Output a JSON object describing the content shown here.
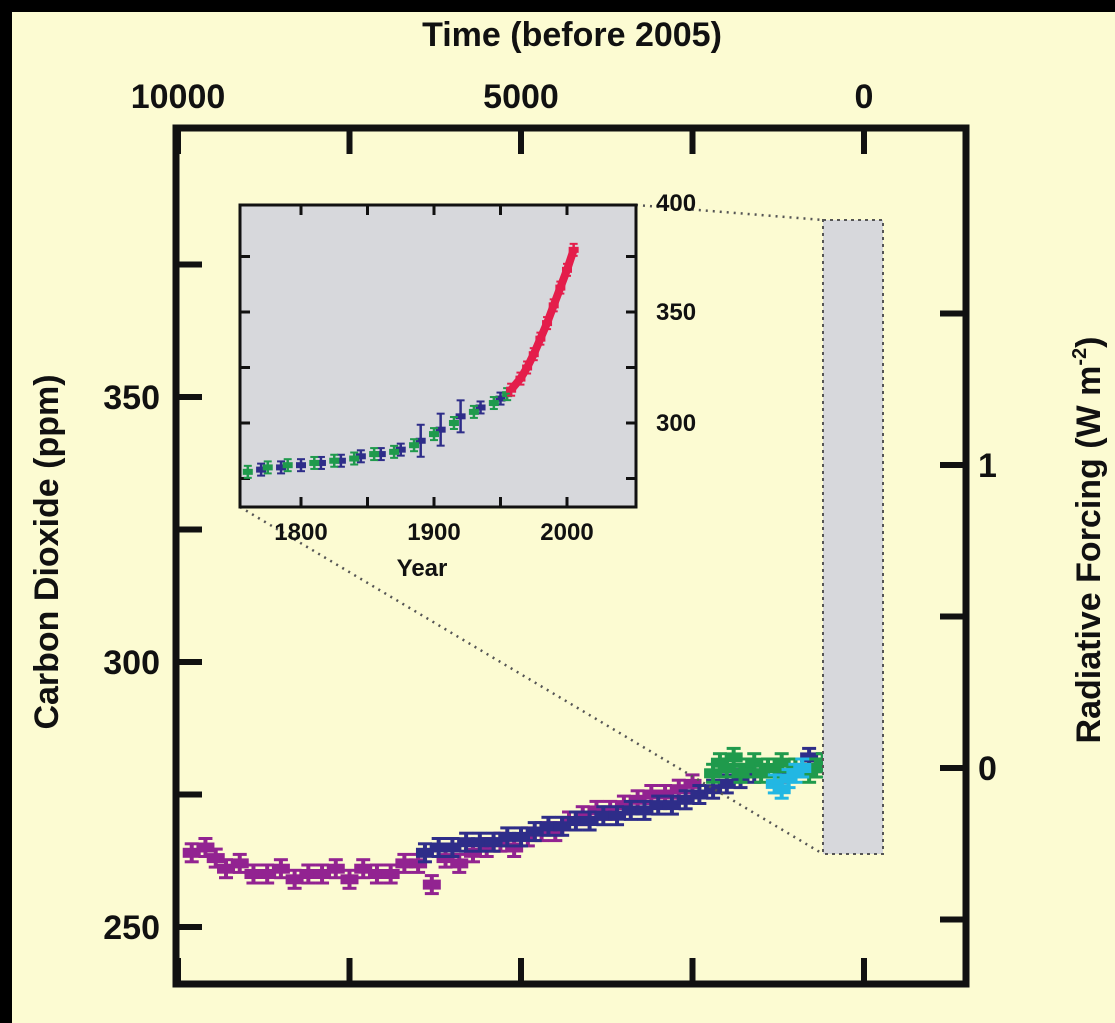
{
  "chart_data": [
    {
      "type": "scatter",
      "title": "",
      "x_top_label": "Time (before 2005)",
      "y_left_label": "Carbon Dioxide (ppm)",
      "y_right_label": "Radiative Forcing (W m",
      "y_right_label_sup": "-2",
      "y_right_label_close": ")",
      "x_ticks": [
        10000,
        5000,
        0
      ],
      "x_tick_labels": [
        "10000",
        "5000",
        "0"
      ],
      "x_range": [
        10000,
        -300
      ],
      "y_range": [
        245,
        397
      ],
      "y_ticks": [
        250,
        300,
        350
      ],
      "y_tick_labels": [
        "250",
        "300",
        "350"
      ],
      "y_right_ticks": [
        0,
        1
      ],
      "y_right_tick_labels": [
        "0",
        "1"
      ],
      "y_right_range": [
        -0.5,
        3.0
      ],
      "y_right_tick_ppm": [
        278.5,
        332.5
      ],
      "series": [
        {
          "name": "",
          "color": "#922391",
          "x": [
            10000,
            9800,
            9600,
            9450,
            9300,
            9100,
            8900,
            8700,
            8500,
            8300,
            8100,
            7900,
            7700,
            7500,
            7300,
            7100,
            6900,
            6700,
            6500,
            6300,
            6100,
            5900,
            5700,
            5500,
            5300,
            5100,
            4900,
            4700,
            4500,
            4300,
            4100,
            3900,
            3700,
            3500,
            3300,
            3100,
            2900,
            2700,
            2500
          ],
          "y": [
            265,
            264,
            265,
            263,
            261,
            262,
            260,
            260,
            261,
            259,
            260,
            260,
            261,
            259,
            261,
            260,
            260,
            262,
            262,
            258,
            263,
            262,
            264,
            265,
            266,
            265,
            267,
            268,
            268,
            270,
            271,
            272,
            272,
            273,
            274,
            275,
            275,
            276,
            277
          ]
        },
        {
          "name": "",
          "color": "#2e2d89",
          "x": [
            6400,
            6200,
            6000,
            5800,
            5600,
            5400,
            5200,
            5000,
            4800,
            4600,
            4400,
            4200,
            4000,
            3800,
            3600,
            3400,
            3200,
            3000,
            2800,
            2600,
            2400,
            2200,
            2000,
            1800,
            1600,
            1400,
            1200,
            1000,
            800,
            600,
            400,
            300,
            200,
            150,
            100,
            50,
            0
          ],
          "y": [
            264,
            265,
            265,
            266,
            266,
            266,
            267,
            267,
            268,
            269,
            269,
            270,
            270,
            271,
            271,
            272,
            272,
            273,
            273,
            274,
            275,
            276,
            277,
            278,
            279,
            280,
            279,
            280,
            282,
            281,
            282,
            280,
            278,
            276,
            278,
            280,
            283
          ]
        },
        {
          "name": "",
          "color": "#1f9a4c",
          "x": [
            2200,
            2100,
            2000,
            1900,
            1800,
            1700,
            1600,
            1500,
            1400,
            1300,
            1200,
            1000,
            800,
            700,
            600,
            500,
            400,
            300,
            200,
            120,
            80,
            60,
            40,
            30,
            20,
            10,
            0
          ],
          "y": [
            279,
            281,
            280,
            282,
            279,
            280,
            281,
            279,
            280,
            280,
            281,
            280,
            279,
            280,
            281,
            280,
            279,
            276,
            277,
            282,
            285,
            290,
            297,
            305,
            318,
            330,
            338
          ]
        },
        {
          "name": "",
          "color": "#22b7e3",
          "x": [
            1300,
            1200,
            1100,
            1000,
            900
          ],
          "y": [
            277,
            276,
            278,
            279,
            280
          ]
        },
        {
          "name": "",
          "color": "#e41d4b",
          "x": [
            45,
            40,
            35,
            30,
            25,
            20,
            15,
            10,
            5,
            0
          ],
          "y": [
            317,
            320,
            325,
            330,
            335,
            341,
            347,
            354,
            363,
            375
          ]
        }
      ]
    },
    {
      "type": "scatter",
      "title": "",
      "xlabel": "Year",
      "x_range": [
        1750,
        2050
      ],
      "y_range": [
        265,
        400
      ],
      "x_ticks": [
        1800,
        1900,
        2000
      ],
      "x_tick_labels": [
        "1800",
        "1900",
        "2000"
      ],
      "y_ticks": [
        300,
        350,
        400
      ],
      "y_tick_labels": [
        "300",
        "350",
        "400"
      ],
      "series": [
        {
          "name": "",
          "color": "#2e2d89",
          "x": [
            1755,
            1770,
            1785,
            1800,
            1815,
            1830,
            1845,
            1860,
            1875,
            1890,
            1905,
            1920,
            1935,
            1950
          ],
          "y": [
            277,
            279,
            280,
            281,
            282,
            283,
            285,
            286,
            288,
            292,
            297,
            303,
            307,
            311
          ]
        },
        {
          "name": "",
          "color": "#1f9a4c",
          "x": [
            1760,
            1775,
            1790,
            1810,
            1825,
            1840,
            1855,
            1870,
            1885,
            1900,
            1915,
            1930,
            1945,
            1955
          ],
          "y": [
            278,
            280,
            281,
            282,
            283,
            284,
            286,
            287,
            290,
            295,
            300,
            305,
            309,
            313
          ]
        },
        {
          "name": "",
          "color": "#e41d4b",
          "x": [
            1958,
            1965,
            1970,
            1975,
            1980,
            1985,
            1990,
            1995,
            2000,
            2005
          ],
          "y": [
            315,
            320,
            325,
            331,
            338,
            345,
            353,
            361,
            369,
            378
          ]
        }
      ]
    }
  ]
}
